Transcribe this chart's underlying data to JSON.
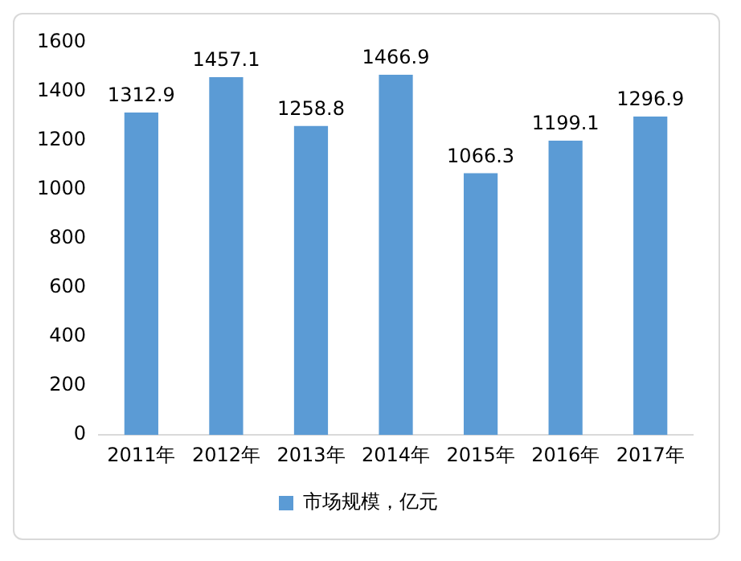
{
  "chart_data": {
    "type": "bar",
    "categories": [
      "2011年",
      "2012年",
      "2013年",
      "2014年",
      "2015年",
      "2016年",
      "2017年"
    ],
    "series": [
      {
        "name": "市场规模，亿元",
        "color": "#5b9bd5",
        "values": [
          1312.9,
          1457.1,
          1258.8,
          1466.9,
          1066.3,
          1199.1,
          1296.9
        ]
      }
    ],
    "ylim": [
      0,
      1600
    ],
    "yticks": [
      0,
      200,
      400,
      600,
      800,
      1000,
      1200,
      1400,
      1600
    ],
    "grid": false,
    "legend": "bottom",
    "data_labels": true
  }
}
